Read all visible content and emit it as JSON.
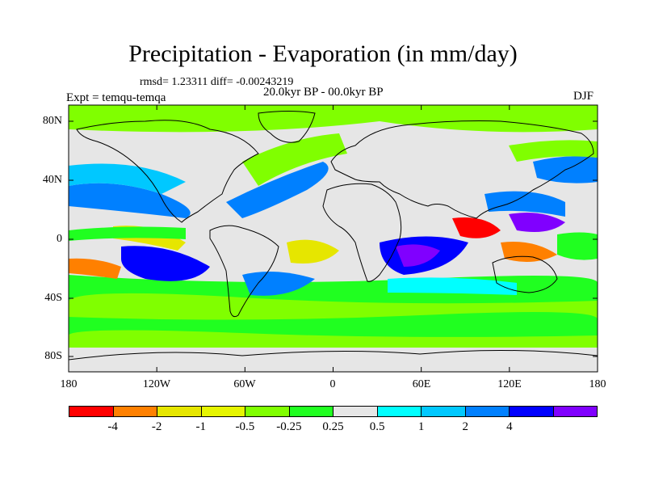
{
  "title": "Precipitation - Evaporation (in mm/day)",
  "stats": "rmsd= 1.23311 diff= -0.00243219",
  "period": "20.0kyr BP - 00.0kyr BP",
  "experiment": "Expt = temqu-temqa",
  "season": "DJF",
  "map": {
    "lon_labels": [
      "180",
      "120W",
      "60W",
      "0",
      "60E",
      "120E",
      "180"
    ],
    "lat_labels": [
      "80N",
      "40N",
      "0",
      "40S",
      "80S"
    ],
    "ocean_default_color": "#e6e6e6"
  },
  "legend": {
    "colors": [
      "#ff0000",
      "#ff8000",
      "#e6e600",
      "#e6f500",
      "#80ff00",
      "#20ff20",
      "#e6e6e6",
      "#00ffff",
      "#00c8ff",
      "#0080ff",
      "#0000ff",
      "#8000ff"
    ],
    "labels": [
      "-4",
      "-2",
      "-1",
      "-0.5",
      "-0.25",
      "0.25",
      "0.5",
      "1",
      "2",
      "4"
    ]
  }
}
